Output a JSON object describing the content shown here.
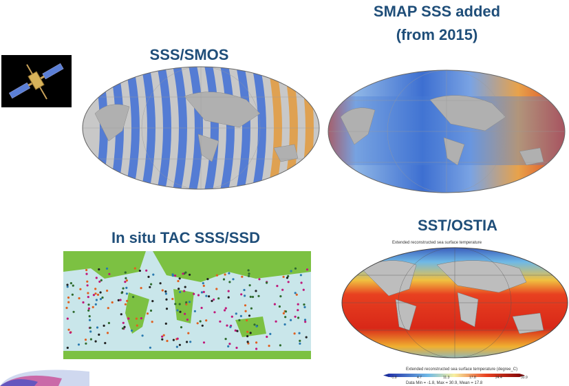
{
  "panels": {
    "smos": {
      "title": "SSS/SMOS"
    },
    "smap": {
      "title_line1": "SMAP SSS added",
      "title_line2": "(from 2015)"
    },
    "insitu": {
      "title": "In situ TAC SSS/SSD"
    },
    "ostia": {
      "title": "SST/OSTIA",
      "map_title": "Extended reconstructed sea surface temperature",
      "colorbar_title": "Extended reconstructed sea surface temperature (degree_C)",
      "ticks": [
        "-1.8",
        "4.7",
        "11.3",
        "17.8",
        "24.4",
        "30.9"
      ],
      "stats": "Data Min = -1.8, Max = 30.9, Mean = 17.8"
    }
  },
  "colors": {
    "title": "#1f4e79",
    "map_land": "#bdbdbd",
    "insitu_land": "#7cc142",
    "insitu_ocean": "#c9e6ea"
  }
}
